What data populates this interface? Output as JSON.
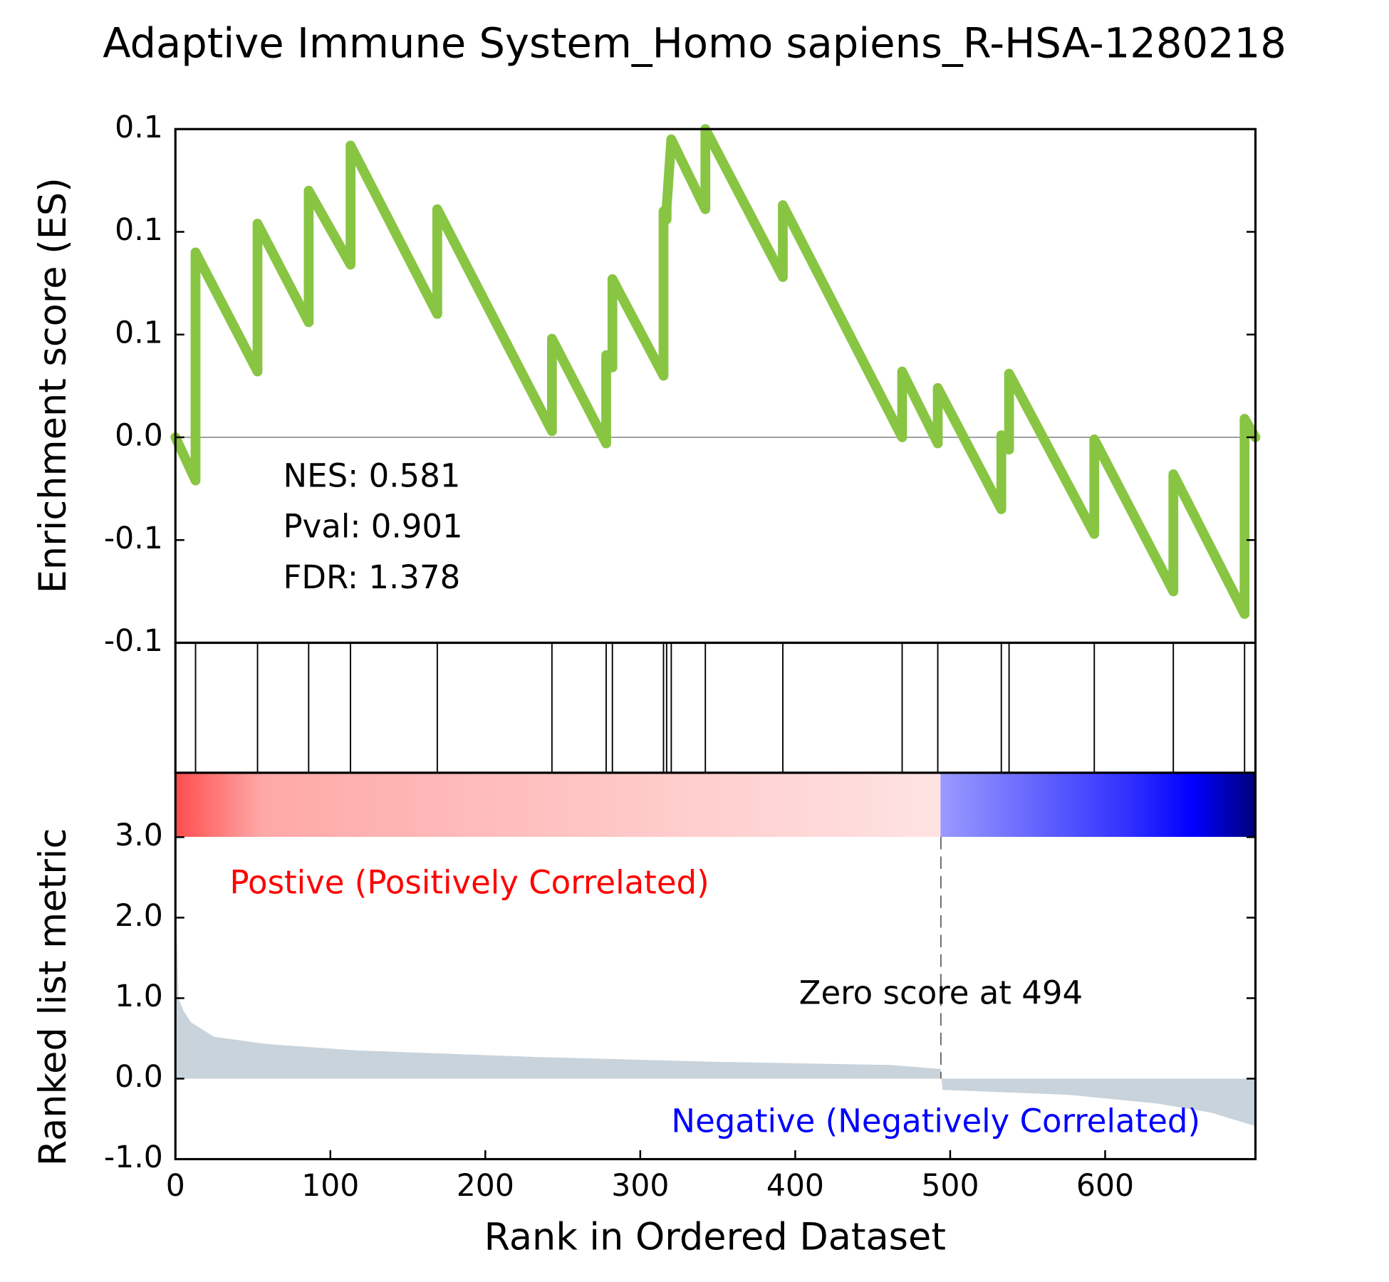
{
  "chart_data": {
    "type": "gsea",
    "title": "Adaptive Immune System_Homo sapiens_R-HSA-1280218",
    "xlabel": "Rank in Ordered Dataset",
    "xlim": [
      0,
      697
    ],
    "xticks": [
      0,
      100,
      200,
      300,
      400,
      500,
      600
    ],
    "es": {
      "ylabel": "Enrichment score (ES)",
      "ylim": [
        -0.1,
        0.15
      ],
      "yticks": [
        {
          "value": -0.1,
          "label": "-0.1"
        },
        {
          "value": -0.05,
          "label": "-0.1"
        },
        {
          "value": 0,
          "label": "0.0"
        },
        {
          "value": 0.05,
          "label": "0.1"
        },
        {
          "value": 0.1,
          "label": "0.1"
        },
        {
          "value": 0.15,
          "label": "0.1"
        }
      ],
      "color": "#88c543",
      "x": [
        0,
        13,
        13,
        53,
        53,
        86,
        86,
        113,
        113,
        169,
        169,
        243,
        243,
        278,
        278,
        282,
        282,
        315,
        315,
        317,
        317,
        320,
        342,
        342,
        392,
        392,
        469,
        469,
        492,
        492,
        533,
        533,
        538,
        538,
        593,
        593,
        644,
        644,
        690,
        690,
        697
      ],
      "values": [
        0,
        -0.021,
        0.09,
        0.032,
        0.104,
        0.056,
        0.12,
        0.084,
        0.142,
        0.06,
        0.111,
        0.003,
        0.048,
        -0.003,
        0.04,
        0.034,
        0.077,
        0.03,
        0.11,
        0.106,
        0.112,
        0.145,
        0.111,
        0.15,
        0.078,
        0.113,
        0,
        0.032,
        -0.003,
        0.024,
        -0.035,
        0.001,
        -0.006,
        0.031,
        -0.047,
        -0.001,
        -0.075,
        -0.018,
        -0.086,
        0.009,
        0
      ],
      "hits": [
        13,
        53,
        86,
        113,
        169,
        243,
        278,
        282,
        315,
        317,
        320,
        342,
        392,
        469,
        492,
        533,
        538,
        593,
        644,
        690
      ],
      "annotations": [
        "NES: 0.581",
        "Pval: 0.901",
        "FDR: 1.378"
      ]
    },
    "metric": {
      "ylabel": "Ranked list metric",
      "ylim": [
        -1,
        3.8
      ],
      "yticks": [
        {
          "value": -1,
          "label": "-1.0"
        },
        {
          "value": 0,
          "label": "0.0"
        },
        {
          "value": 1,
          "label": "1.0"
        },
        {
          "value": 2,
          "label": "2.0"
        },
        {
          "value": 3,
          "label": "3.0"
        }
      ],
      "color": "#c9d3db",
      "x": [
        0,
        2,
        5,
        10,
        25,
        59,
        117,
        232,
        347,
        461,
        494,
        495,
        576,
        634,
        668,
        697
      ],
      "values": [
        2.5,
        1.0,
        0.85,
        0.7,
        0.52,
        0.43,
        0.35,
        0.27,
        0.21,
        0.17,
        0.12,
        -0.14,
        -0.2,
        -0.31,
        -0.42,
        -0.59
      ],
      "zero_rank": 494,
      "zero_label": "Zero score at 494",
      "pos_label": "Postive (Positively Correlated)",
      "neg_label": "Negative (Negatively Correlated)"
    }
  }
}
